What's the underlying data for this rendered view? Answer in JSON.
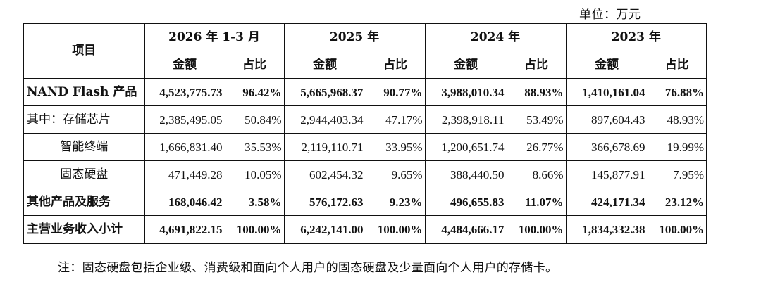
{
  "unit_label": "单位：万元",
  "table": {
    "item_header": "项目",
    "periods": [
      "2026 年 1-3 月",
      "2025 年",
      "2024 年",
      "2023 年"
    ],
    "sub_headers": {
      "amount": "金额",
      "share": "占比"
    },
    "rows": [
      {
        "label": "NAND Flash 产品",
        "bold": true,
        "indent": false,
        "cells": [
          "4,523,775.73",
          "96.42%",
          "5,665,968.37",
          "90.77%",
          "3,988,010.34",
          "88.93%",
          "1,410,161.04",
          "76.88%"
        ]
      },
      {
        "label": "其中：存储芯片",
        "bold": false,
        "indent": false,
        "cells": [
          "2,385,495.05",
          "50.84%",
          "2,944,403.34",
          "47.17%",
          "2,398,918.11",
          "53.49%",
          "897,604.43",
          "48.93%"
        ]
      },
      {
        "label": "智能终端",
        "bold": false,
        "indent": true,
        "cells": [
          "1,666,831.40",
          "35.53%",
          "2,119,110.71",
          "33.95%",
          "1,200,651.74",
          "26.77%",
          "366,678.69",
          "19.99%"
        ]
      },
      {
        "label": "固态硬盘",
        "bold": false,
        "indent": true,
        "cells": [
          "471,449.28",
          "10.05%",
          "602,454.32",
          "9.65%",
          "388,440.50",
          "8.66%",
          "145,877.91",
          "7.95%"
        ]
      },
      {
        "label": "其他产品及服务",
        "bold": true,
        "indent": false,
        "cells": [
          "168,046.42",
          "3.58%",
          "576,172.63",
          "9.23%",
          "496,655.83",
          "11.07%",
          "424,171.34",
          "23.12%"
        ]
      },
      {
        "label": "主营业务收入小计",
        "bold": true,
        "indent": false,
        "cells": [
          "4,691,822.15",
          "100.00%",
          "6,242,141.00",
          "100.00%",
          "4,484,666.17",
          "100.00%",
          "1,834,332.38",
          "100.00%"
        ]
      }
    ]
  },
  "note": "注：固态硬盘包括企业级、消费级和面向个人用户的固态硬盘及少量面向个人用户的存储卡。"
}
